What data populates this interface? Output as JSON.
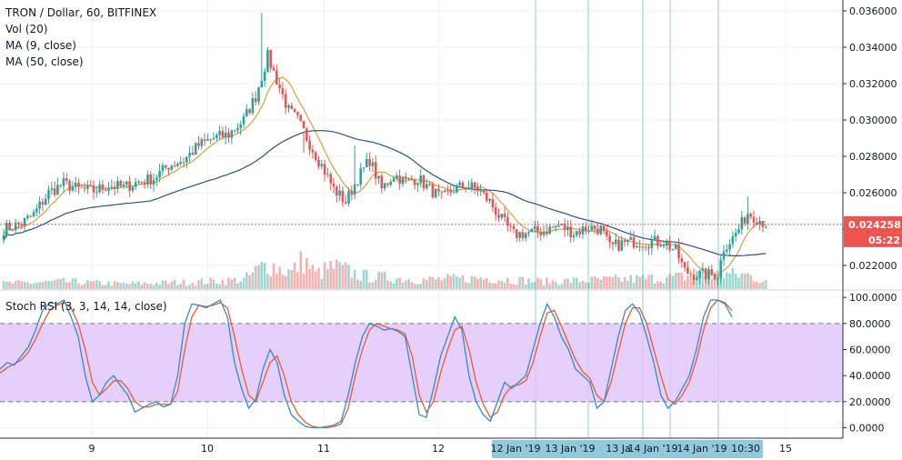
{
  "header": {
    "symbol": "TRON / Dollar, 60, BITFINEX",
    "vol": "Vol (20)",
    "ma9": "MA (9, close)",
    "ma50": "MA (50, close)"
  },
  "stoch_label": "Stoch RSI (3, 3, 14, 14, close)",
  "price_badge": {
    "price": "0.024258",
    "countdown": "05:22"
  },
  "colors": {
    "up": "#26a69a",
    "down": "#ef5350",
    "ma9": "#d4a23a",
    "ma50": "#2e4f86",
    "k": "#2f8bd6",
    "d": "#f05a28",
    "band": "#e1c7fa",
    "xbar": "#90c9dc"
  },
  "time_axis": {
    "labels": [
      "9",
      "10",
      "11",
      "12",
      "15"
    ],
    "highlight_labels": [
      "12 Jan '19",
      "13 Jan '19",
      "13 Ja",
      "14 Jan '19",
      "14 Jan '19",
      "10:30"
    ]
  },
  "chart_data": [
    {
      "type": "candlestick",
      "title": "TRON / Dollar, 60, BITFINEX",
      "ylim": [
        0.0207,
        0.0366
      ],
      "yticks": [
        "0.022000",
        "0.024000",
        "0.026000",
        "0.028000",
        "0.030000",
        "0.032000",
        "0.034000",
        "0.036000"
      ],
      "last_price": 0.024258,
      "keyframes_close": [
        [
          0,
          0.024
        ],
        [
          6,
          0.0243
        ],
        [
          10,
          0.0248
        ],
        [
          15,
          0.026
        ],
        [
          20,
          0.0265
        ],
        [
          25,
          0.0262
        ],
        [
          30,
          0.0261
        ],
        [
          35,
          0.0264
        ],
        [
          40,
          0.0263
        ],
        [
          45,
          0.0266
        ],
        [
          50,
          0.0268
        ],
        [
          55,
          0.0275
        ],
        [
          60,
          0.0278
        ],
        [
          65,
          0.0286
        ],
        [
          70,
          0.029
        ],
        [
          75,
          0.0292
        ],
        [
          80,
          0.03
        ],
        [
          84,
          0.0313
        ],
        [
          88,
          0.0335
        ],
        [
          91,
          0.0322
        ],
        [
          95,
          0.0305
        ],
        [
          98,
          0.03
        ],
        [
          102,
          0.0287
        ],
        [
          106,
          0.0275
        ],
        [
          110,
          0.0262
        ],
        [
          114,
          0.0255
        ],
        [
          118,
          0.0268
        ],
        [
          122,
          0.0278
        ],
        [
          126,
          0.0262
        ],
        [
          130,
          0.027
        ],
        [
          134,
          0.0266
        ],
        [
          138,
          0.0268
        ],
        [
          142,
          0.0262
        ],
        [
          146,
          0.0257
        ],
        [
          150,
          0.0262
        ],
        [
          154,
          0.0264
        ],
        [
          158,
          0.0262
        ],
        [
          162,
          0.0255
        ],
        [
          166,
          0.0245
        ],
        [
          170,
          0.0237
        ],
        [
          175,
          0.0238
        ],
        [
          180,
          0.0239
        ],
        [
          185,
          0.0242
        ],
        [
          190,
          0.0238
        ],
        [
          195,
          0.0241
        ],
        [
          199,
          0.024
        ],
        [
          202,
          0.023
        ],
        [
          206,
          0.0232
        ],
        [
          210,
          0.0233
        ],
        [
          215,
          0.0233
        ],
        [
          220,
          0.0233
        ],
        [
          224,
          0.0228
        ],
        [
          227,
          0.0217
        ],
        [
          230,
          0.0215
        ],
        [
          234,
          0.0215
        ],
        [
          238,
          0.0215
        ],
        [
          240,
          0.023
        ],
        [
          243,
          0.0235
        ],
        [
          245,
          0.024
        ],
        [
          248,
          0.0249
        ],
        [
          251,
          0.0246
        ],
        [
          254,
          0.0243
        ]
      ],
      "keyframes_volume": [
        [
          0,
          0.15
        ],
        [
          20,
          0.2
        ],
        [
          40,
          0.14
        ],
        [
          60,
          0.18
        ],
        [
          80,
          0.25
        ],
        [
          88,
          0.7
        ],
        [
          92,
          0.55
        ],
        [
          96,
          0.45
        ],
        [
          100,
          0.8
        ],
        [
          104,
          0.4
        ],
        [
          110,
          0.6
        ],
        [
          120,
          0.35
        ],
        [
          140,
          0.25
        ],
        [
          160,
          0.3
        ],
        [
          180,
          0.2
        ],
        [
          200,
          0.25
        ],
        [
          220,
          0.3
        ],
        [
          230,
          0.35
        ],
        [
          240,
          0.4
        ],
        [
          248,
          0.38
        ],
        [
          254,
          0.22
        ]
      ]
    },
    {
      "type": "line",
      "title": "Stoch RSI (3, 3, 14, 14, close)",
      "ylim": [
        -8,
        105
      ],
      "yticks": [
        "0.0000",
        "20.0000",
        "40.0000",
        "60.0000",
        "80.0000",
        "100.0000"
      ],
      "band": [
        20,
        80
      ],
      "series": [
        {
          "name": "K",
          "values": [
            45,
            50,
            48,
            55,
            62,
            75,
            90,
            96,
            95,
            98,
            85,
            70,
            40,
            20,
            25,
            35,
            40,
            32,
            25,
            12,
            15,
            18,
            20,
            16,
            18,
            40,
            80,
            95,
            94,
            92,
            95,
            98,
            85,
            50,
            30,
            15,
            22,
            45,
            60,
            50,
            25,
            10,
            5,
            1,
            0,
            0,
            1,
            2,
            5,
            25,
            50,
            70,
            80,
            78,
            75,
            76,
            74,
            70,
            40,
            10,
            8,
            30,
            55,
            70,
            85,
            75,
            40,
            20,
            10,
            5,
            20,
            35,
            30,
            35,
            40,
            60,
            80,
            95,
            85,
            70,
            60,
            45,
            40,
            35,
            15,
            20,
            45,
            70,
            90,
            95,
            88,
            70,
            50,
            25,
            15,
            20,
            30,
            40,
            60,
            85,
            98,
            98,
            95,
            85
          ]
        },
        {
          "name": "D",
          "values": [
            42,
            46,
            49,
            52,
            58,
            68,
            80,
            90,
            94,
            96,
            92,
            80,
            60,
            35,
            25,
            30,
            36,
            36,
            30,
            20,
            16,
            16,
            18,
            18,
            18,
            28,
            60,
            85,
            94,
            93,
            94,
            96,
            92,
            70,
            45,
            25,
            20,
            35,
            50,
            55,
            40,
            20,
            10,
            4,
            1,
            0,
            0,
            1,
            3,
            15,
            40,
            60,
            75,
            80,
            78,
            76,
            75,
            72,
            55,
            25,
            12,
            20,
            42,
            60,
            75,
            78,
            60,
            35,
            18,
            8,
            12,
            25,
            32,
            33,
            36,
            50,
            70,
            88,
            90,
            78,
            65,
            52,
            43,
            38,
            25,
            20,
            35,
            58,
            80,
            92,
            92,
            80,
            60,
            40,
            22,
            18,
            25,
            35,
            52,
            75,
            92,
            98,
            96,
            90
          ]
        }
      ]
    }
  ]
}
